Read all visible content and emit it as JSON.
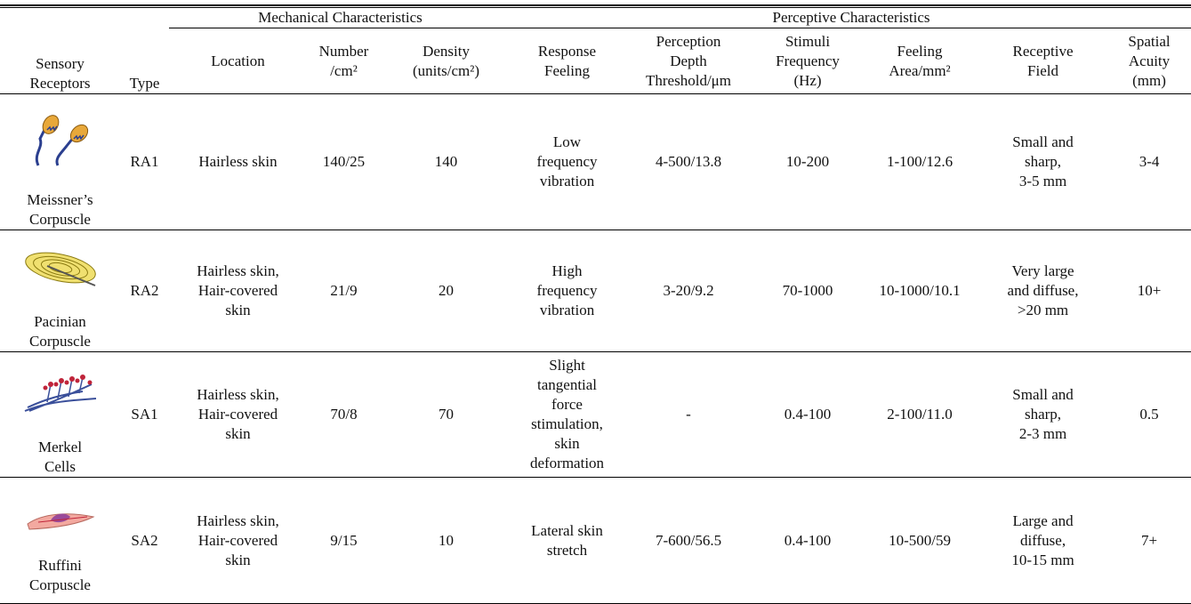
{
  "table": {
    "group_headers": [
      "Mechanical Characteristics",
      "Perceptive Characteristics"
    ],
    "headers": [
      "Sensory\nReceptors",
      "Type",
      "Location",
      "Number\n/cm²",
      "Density\n(units/cm²)",
      "Response\nFeeling",
      "Perception\nDepth\nThreshold/μm",
      "Stimuli\nFrequency\n(Hz)",
      "Feeling\nArea/mm²",
      "Receptive\nField",
      "Spatial\nAcuity\n(mm)"
    ],
    "rows": [
      [
        "Meissner’s\nCorpuscle",
        "RA1",
        "Hairless skin",
        "140/25",
        "140",
        "Low\nfrequency\nvibration",
        "4-500/13.8",
        "10-200",
        "1-100/12.6",
        "Small and\nsharp,\n3-5 mm",
        "3-4"
      ],
      [
        "Pacinian\nCorpuscle",
        "RA2",
        "Hairless skin,\nHair-covered\nskin",
        "21/9",
        "20",
        "High\nfrequency\nvibration",
        "3-20/9.2",
        "70-1000",
        "10-1000/10.1",
        "Very large\nand diffuse,\n>20 mm",
        "10+"
      ],
      [
        "Merkel\nCells",
        "SA1",
        "Hairless skin,\nHair-covered\nskin",
        "70/8",
        "70",
        "Slight\ntangential\nforce\nstimulation,\nskin\ndeformation",
        "-",
        "0.4-100",
        "2-100/11.0",
        "Small and\nsharp,\n2-3 mm",
        "0.5"
      ],
      [
        "Ruffini\nCorpuscle",
        "SA2",
        "Hairless skin,\nHair-covered\nskin",
        "9/15",
        "10",
        "Lateral skin\nstretch",
        "7-600/56.5",
        "0.4-100",
        "10-500/59",
        "Large and\ndiffuse,\n10-15 mm",
        "7+"
      ]
    ]
  }
}
